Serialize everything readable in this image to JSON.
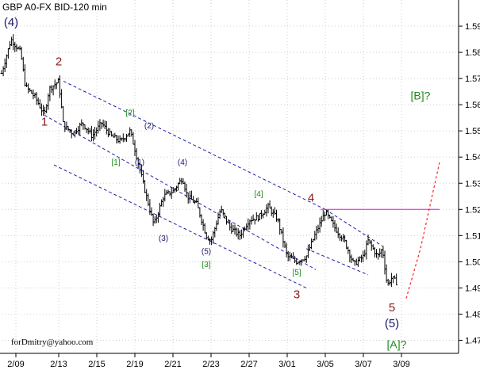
{
  "chart_data": {
    "type": "ohlc",
    "title": "GBP A0-FX BID-120 min",
    "y_range": [
      1.465,
      1.6
    ],
    "y_ticks": [
      "1.59",
      "1.58",
      "1.57",
      "1.56",
      "1.55",
      "1.54",
      "1.53",
      "1.52",
      "1.51",
      "1.50",
      "1.49",
      "1.48",
      "1.47"
    ],
    "y_tick_values": [
      1.59,
      1.58,
      1.57,
      1.56,
      1.55,
      1.54,
      1.53,
      1.52,
      1.51,
      1.5,
      1.49,
      1.48,
      1.47
    ],
    "x_ticks": [
      "2/09",
      "2/13",
      "2/15",
      "2/19",
      "2/21",
      "2/23",
      "2/27",
      "3/01",
      "3/05",
      "3/07",
      "3/09"
    ],
    "x_tick_positions": [
      3,
      12,
      20,
      28,
      36,
      44,
      52,
      60,
      68,
      76,
      84
    ],
    "x_range": [
      0,
      96
    ],
    "price_path": [
      [
        0,
        1.572
      ],
      [
        2,
        1.585
      ],
      [
        4,
        1.58
      ],
      [
        5,
        1.567
      ],
      [
        7,
        1.563
      ],
      [
        9,
        1.556
      ],
      [
        10,
        1.566
      ],
      [
        12,
        1.569
      ],
      [
        13,
        1.552
      ],
      [
        15,
        1.549
      ],
      [
        17,
        1.553
      ],
      [
        19,
        1.548
      ],
      [
        21,
        1.553
      ],
      [
        23,
        1.548
      ],
      [
        25,
        1.546
      ],
      [
        27,
        1.55
      ],
      [
        28,
        1.543
      ],
      [
        30,
        1.528
      ],
      [
        32,
        1.514
      ],
      [
        34,
        1.525
      ],
      [
        36,
        1.527
      ],
      [
        38,
        1.532
      ],
      [
        39,
        1.525
      ],
      [
        41,
        1.522
      ],
      [
        43,
        1.51
      ],
      [
        44,
        1.508
      ],
      [
        46,
        1.52
      ],
      [
        48,
        1.513
      ],
      [
        50,
        1.51
      ],
      [
        52,
        1.516
      ],
      [
        54,
        1.517
      ],
      [
        56,
        1.521
      ],
      [
        58,
        1.516
      ],
      [
        60,
        1.502
      ],
      [
        62,
        1.5
      ],
      [
        64,
        1.502
      ],
      [
        66,
        1.511
      ],
      [
        68,
        1.519
      ],
      [
        70,
        1.513
      ],
      [
        72,
        1.508
      ],
      [
        74,
        1.499
      ],
      [
        76,
        1.502
      ],
      [
        77,
        1.508
      ],
      [
        79,
        1.502
      ],
      [
        80,
        1.505
      ],
      [
        81,
        1.491
      ],
      [
        82,
        1.494
      ],
      [
        83,
        1.492
      ]
    ],
    "resistance_line": {
      "value": 1.52,
      "x_start": 67,
      "x_end": 92,
      "color": "#ff00ff"
    },
    "channel_lines": [
      {
        "points": [
          [
            13,
            1.569
          ],
          [
            68,
            1.52
          ]
        ]
      },
      {
        "points": [
          [
            9,
            1.556
          ],
          [
            66,
            1.497
          ]
        ]
      },
      {
        "points": [
          [
            11,
            1.537
          ],
          [
            64,
            1.49
          ]
        ]
      },
      {
        "points": [
          [
            68,
            1.52
          ],
          [
            80,
            1.506
          ]
        ]
      },
      {
        "points": [
          [
            64,
            1.505
          ],
          [
            77,
            1.495
          ]
        ]
      }
    ],
    "forecast_path": [
      [
        85,
        1.486
      ],
      [
        88,
        1.505
      ],
      [
        92,
        1.538
      ]
    ],
    "wave_labels": [
      {
        "text": "(4)",
        "x": 2,
        "y": 1.59,
        "color": "#1a1a6e"
      },
      {
        "text": "2",
        "x": 12,
        "y": 1.575,
        "color": "#8b1a1a"
      },
      {
        "text": "1",
        "x": 9,
        "y": 1.552,
        "color": "#8b1a1a"
      },
      {
        "text": "[2]",
        "x": 27,
        "y": 1.556,
        "color": "#1a8a1a"
      },
      {
        "text": "(2)",
        "x": 31,
        "y": 1.551,
        "color": "#1a1a6e"
      },
      {
        "text": "[1]",
        "x": 24,
        "y": 1.537,
        "color": "#1a8a1a"
      },
      {
        "text": "(1)",
        "x": 29,
        "y": 1.537,
        "color": "#1a1a6e"
      },
      {
        "text": "(4)",
        "x": 38,
        "y": 1.537,
        "color": "#1a1a6e"
      },
      {
        "text": "(3)",
        "x": 34,
        "y": 1.508,
        "color": "#1a1a6e"
      },
      {
        "text": "(5)",
        "x": 43,
        "y": 1.503,
        "color": "#1a1a6e"
      },
      {
        "text": "[3]",
        "x": 43,
        "y": 1.498,
        "color": "#1a8a1a"
      },
      {
        "text": "[4]",
        "x": 54,
        "y": 1.525,
        "color": "#1a8a1a"
      },
      {
        "text": "4",
        "x": 65,
        "y": 1.523,
        "color": "#8b1a1a"
      },
      {
        "text": "[5]",
        "x": 62,
        "y": 1.495,
        "color": "#1a8a1a"
      },
      {
        "text": "3",
        "x": 62,
        "y": 1.486,
        "color": "#8b1a1a"
      },
      {
        "text": "5",
        "x": 82,
        "y": 1.481,
        "color": "#8b1a1a"
      },
      {
        "text": "(5)",
        "x": 82,
        "y": 1.475,
        "color": "#1a1a6e"
      },
      {
        "text": "[A]?",
        "x": 83,
        "y": 1.467,
        "color": "#1a8a1a"
      },
      {
        "text": "[B]?",
        "x": 88,
        "y": 1.562,
        "color": "#1a8a1a"
      }
    ]
  },
  "credit": "forDmitry@yahoo.com"
}
